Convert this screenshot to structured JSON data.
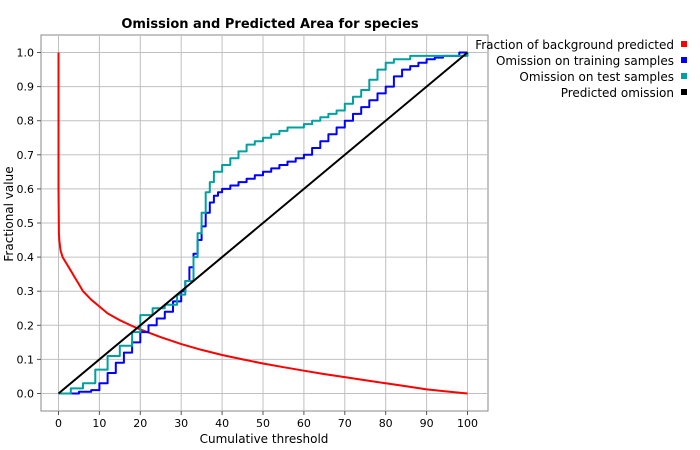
{
  "chart_data": {
    "type": "line",
    "title": "Omission and Predicted Area for species",
    "xlabel": "Cumulative threshold",
    "ylabel": "Fractional value",
    "xlim": [
      0,
      100
    ],
    "ylim": [
      0,
      1
    ],
    "xticks": [
      0,
      10,
      20,
      30,
      40,
      50,
      60,
      70,
      80,
      90,
      100
    ],
    "yticks": [
      0.0,
      0.1,
      0.2,
      0.3,
      0.4,
      0.5,
      0.6,
      0.7,
      0.8,
      0.9,
      1.0
    ],
    "ytick_labels": [
      "0.0",
      "0.1",
      "0.2",
      "0.3",
      "0.4",
      "0.5",
      "0.6",
      "0.7",
      "0.8",
      "0.9",
      "1.0"
    ],
    "grid": true,
    "legend_position": "top-right, outside plot",
    "series": [
      {
        "name": "Fraction of background predicted",
        "color": "#ff0000",
        "step": false,
        "x": [
          0,
          0,
          0.1,
          0.2,
          0.3,
          0.5,
          1,
          2,
          3,
          4,
          5,
          6,
          8,
          10,
          12,
          15,
          18,
          20,
          25,
          30,
          35,
          40,
          45,
          50,
          55,
          60,
          65,
          70,
          75,
          80,
          85,
          90,
          95,
          100
        ],
        "y": [
          1.0,
          0.6,
          0.47,
          0.45,
          0.44,
          0.42,
          0.4,
          0.38,
          0.36,
          0.34,
          0.32,
          0.3,
          0.275,
          0.255,
          0.235,
          0.215,
          0.198,
          0.188,
          0.165,
          0.145,
          0.128,
          0.113,
          0.1,
          0.088,
          0.077,
          0.067,
          0.057,
          0.048,
          0.039,
          0.03,
          0.021,
          0.012,
          0.006,
          0.0
        ]
      },
      {
        "name": "Omission on training samples",
        "color": "#0000ff",
        "step": true,
        "x": [
          0,
          2,
          5,
          8,
          10,
          12,
          14,
          16,
          18,
          20,
          22,
          24,
          26,
          28,
          30,
          31,
          32,
          33,
          34,
          35,
          36,
          37,
          38,
          39,
          40,
          42,
          44,
          46,
          48,
          50,
          52,
          54,
          56,
          58,
          60,
          62,
          64,
          66,
          68,
          70,
          72,
          74,
          76,
          78,
          80,
          82,
          84,
          86,
          88,
          90,
          92,
          94,
          96,
          98,
          100
        ],
        "y": [
          0.0,
          0.0,
          0.005,
          0.01,
          0.03,
          0.06,
          0.09,
          0.12,
          0.15,
          0.18,
          0.2,
          0.22,
          0.24,
          0.27,
          0.3,
          0.33,
          0.37,
          0.41,
          0.45,
          0.49,
          0.53,
          0.56,
          0.58,
          0.59,
          0.6,
          0.61,
          0.62,
          0.63,
          0.64,
          0.65,
          0.66,
          0.67,
          0.68,
          0.69,
          0.7,
          0.72,
          0.74,
          0.76,
          0.78,
          0.8,
          0.82,
          0.84,
          0.86,
          0.88,
          0.9,
          0.93,
          0.95,
          0.96,
          0.97,
          0.98,
          0.985,
          0.99,
          0.99,
          1.0,
          1.0
        ]
      },
      {
        "name": "Omission on test samples",
        "color": "#00a0a0",
        "step": true,
        "x": [
          0,
          3,
          6,
          9,
          12,
          15,
          18,
          20,
          23,
          26,
          29,
          31,
          33,
          34,
          35,
          36,
          37,
          38,
          40,
          42,
          44,
          46,
          48,
          50,
          52,
          54,
          56,
          58,
          60,
          62,
          64,
          66,
          68,
          70,
          72,
          74,
          76,
          78,
          80,
          82,
          84,
          86,
          88,
          90,
          92,
          94,
          96,
          98,
          100
        ],
        "y": [
          0.0,
          0.015,
          0.03,
          0.07,
          0.11,
          0.14,
          0.18,
          0.23,
          0.25,
          0.26,
          0.29,
          0.33,
          0.4,
          0.47,
          0.53,
          0.59,
          0.62,
          0.65,
          0.67,
          0.69,
          0.71,
          0.73,
          0.74,
          0.75,
          0.76,
          0.77,
          0.78,
          0.78,
          0.79,
          0.8,
          0.81,
          0.82,
          0.83,
          0.85,
          0.87,
          0.89,
          0.92,
          0.95,
          0.97,
          0.98,
          0.98,
          0.99,
          0.99,
          0.99,
          0.99,
          0.99,
          0.99,
          0.99,
          1.0
        ]
      },
      {
        "name": "Predicted omission",
        "color": "#000000",
        "step": false,
        "x": [
          0,
          100
        ],
        "y": [
          0.0,
          1.0
        ]
      }
    ]
  }
}
